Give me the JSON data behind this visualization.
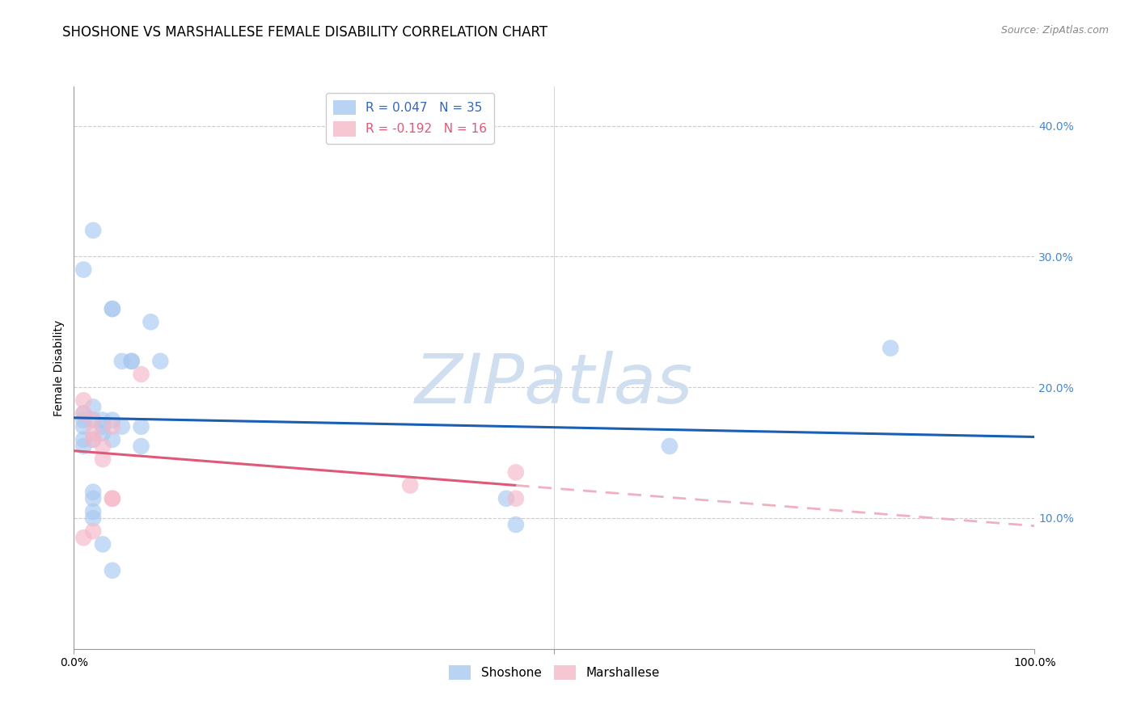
{
  "title": "SHOSHONE VS MARSHALLESE FEMALE DISABILITY CORRELATION CHART",
  "source": "Source: ZipAtlas.com",
  "ylabel": "Female Disability",
  "xlabel": "",
  "xlim": [
    0.0,
    1.0
  ],
  "ylim": [
    0.0,
    0.43
  ],
  "yticks": [
    0.1,
    0.2,
    0.3,
    0.4
  ],
  "ytick_labels": [
    "10.0%",
    "20.0%",
    "30.0%",
    "40.0%"
  ],
  "shoshone_x": [
    0.02,
    0.04,
    0.04,
    0.05,
    0.06,
    0.06,
    0.08,
    0.09,
    0.02,
    0.02,
    0.03,
    0.03,
    0.03,
    0.04,
    0.04,
    0.05,
    0.07,
    0.07,
    0.01,
    0.01,
    0.01,
    0.01,
    0.02,
    0.02,
    0.02,
    0.02,
    0.03,
    0.04,
    0.45,
    0.46,
    0.62,
    0.85,
    0.01,
    0.02,
    0.01
  ],
  "shoshone_y": [
    0.32,
    0.26,
    0.26,
    0.22,
    0.22,
    0.22,
    0.25,
    0.22,
    0.185,
    0.175,
    0.165,
    0.175,
    0.17,
    0.175,
    0.16,
    0.17,
    0.155,
    0.17,
    0.175,
    0.17,
    0.16,
    0.155,
    0.12,
    0.115,
    0.105,
    0.1,
    0.08,
    0.06,
    0.115,
    0.095,
    0.155,
    0.23,
    0.18,
    0.16,
    0.29
  ],
  "marshallese_x": [
    0.01,
    0.01,
    0.01,
    0.02,
    0.02,
    0.02,
    0.02,
    0.03,
    0.03,
    0.04,
    0.04,
    0.04,
    0.07,
    0.35,
    0.46,
    0.46
  ],
  "marshallese_y": [
    0.19,
    0.18,
    0.085,
    0.175,
    0.165,
    0.16,
    0.09,
    0.155,
    0.145,
    0.17,
    0.115,
    0.115,
    0.21,
    0.125,
    0.135,
    0.115
  ],
  "shoshone_color": "#a8c8f0",
  "marshallese_color": "#f5b8c8",
  "shoshone_line_color": "#1a5fb4",
  "marshallese_line_color": "#e05878",
  "marshallese_line_dashed_color": "#f0b0c0",
  "background_color": "#ffffff",
  "grid_color": "#cccccc",
  "title_fontsize": 12,
  "axis_label_fontsize": 10,
  "tick_fontsize": 10,
  "legend_fontsize": 11,
  "watermark_text": "ZIPatlas",
  "watermark_color": "#d0dff0",
  "bottom_legend_labels": [
    "Shoshone",
    "Marshallese"
  ]
}
